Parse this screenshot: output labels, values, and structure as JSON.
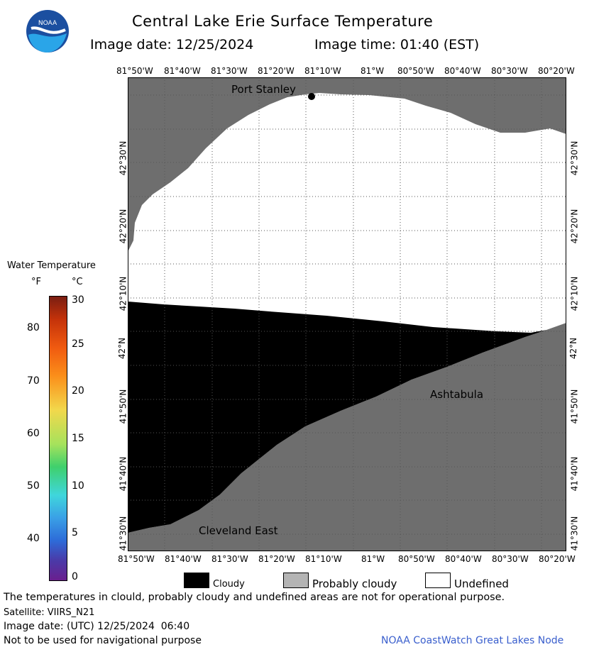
{
  "header": {
    "title": "Central Lake Erie Surface Temperature",
    "image_date": "Image date: 12/25/2024",
    "image_time": "Image time: 01:40 (EST)",
    "logo_text": "NOAA"
  },
  "map": {
    "lon_ticks": [
      "81°50'W",
      "81°40'W",
      "81°30'W",
      "81°20'W",
      "81°10'W",
      "81°W",
      "80°50'W",
      "80°40'W",
      "80°30'W",
      "80°20'W"
    ],
    "lat_ticks": [
      "42°30'N",
      "42°20'N",
      "42°10'N",
      "42°N",
      "41°50'N",
      "41°40'N",
      "41°30'N"
    ],
    "places": {
      "port_stanley": "Port Stanley",
      "ashtabula": "Ashtabula",
      "cleveland_east": "Cleveland East"
    },
    "colors": {
      "land": "#6e6e6e",
      "cloudy": "#000000",
      "undefined": "#ffffff",
      "grid": "#555555"
    }
  },
  "colorbar": {
    "title": "Water Temperature",
    "unit_f": "°F",
    "unit_c": "°C",
    "f_ticks": [
      "80",
      "70",
      "60",
      "50",
      "40"
    ],
    "c_ticks": [
      "30",
      "25",
      "20",
      "15",
      "10",
      "5",
      "0"
    ]
  },
  "legend": {
    "cloudy": "Cloudy",
    "probably_cloudy": "Probably cloudy",
    "undefined": "Undefined"
  },
  "footer": {
    "disclaimer": "The temperatures in clould, probably cloudy and undefined areas are not for operational purpose.",
    "satellite": "Satellite: VIIRS_N21",
    "utc_date": "Image date: (UTC) 12/25/2024  06:40",
    "nav_warning": "Not to be used for navigational purpose",
    "credit": "NOAA CoastWatch Great Lakes Node",
    "credit_color": "#3a5fcd"
  }
}
